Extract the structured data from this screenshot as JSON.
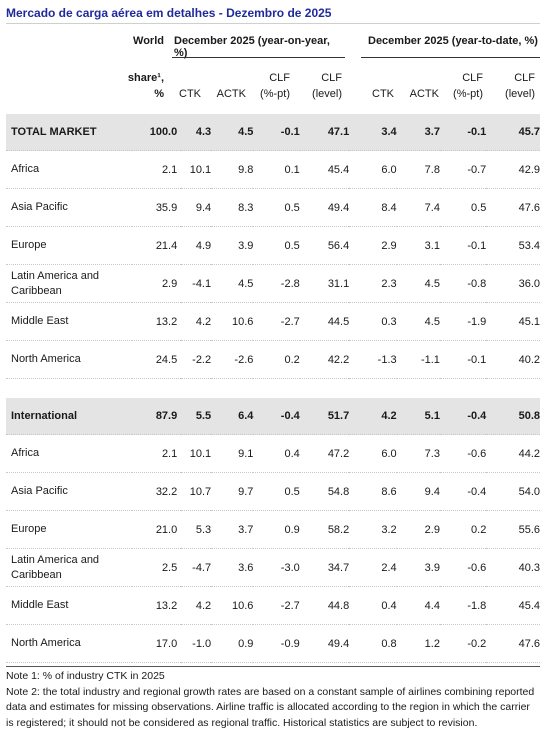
{
  "title": "Mercado de carga aérea em detalhes - Dezembro de 2025",
  "header": {
    "world": "World",
    "share": "share¹,",
    "pct": "%",
    "yoy_group": "December 2025 (year-on-year, %)",
    "ytd_group": "December 2025 (year-to-date, %)",
    "ctk": "CTK",
    "actk": "ACTK",
    "clf_pt_1": "CLF",
    "clf_pt_2": "(%-pt)",
    "clf_lvl_1": "CLF",
    "clf_lvl_2": "(level)"
  },
  "rows": [
    {
      "label": "TOTAL MARKET",
      "share": "100.0",
      "v": [
        "4.3",
        "4.5",
        "-0.1",
        "47.1",
        "3.4",
        "3.7",
        "-0.1",
        "45.7"
      ]
    },
    {
      "label": "Africa",
      "share": "2.1",
      "v": [
        "10.1",
        "9.8",
        "0.1",
        "45.4",
        "6.0",
        "7.8",
        "-0.7",
        "42.9"
      ]
    },
    {
      "label": "Asia Pacific",
      "share": "35.9",
      "v": [
        "9.4",
        "8.3",
        "0.5",
        "49.4",
        "8.4",
        "7.4",
        "0.5",
        "47.6"
      ]
    },
    {
      "label": "Europe",
      "share": "21.4",
      "v": [
        "4.9",
        "3.9",
        "0.5",
        "56.4",
        "2.9",
        "3.1",
        "-0.1",
        "53.4"
      ]
    },
    {
      "label": "Latin America and Caribbean",
      "share": "2.9",
      "v": [
        "-4.1",
        "4.5",
        "-2.8",
        "31.1",
        "2.3",
        "4.5",
        "-0.8",
        "36.0"
      ]
    },
    {
      "label": "Middle East",
      "share": "13.2",
      "v": [
        "4.2",
        "10.6",
        "-2.7",
        "44.5",
        "0.3",
        "4.5",
        "-1.9",
        "45.1"
      ]
    },
    {
      "label": "North America",
      "share": "24.5",
      "v": [
        "-2.2",
        "-2.6",
        "0.2",
        "42.2",
        "-1.3",
        "-1.1",
        "-0.1",
        "40.2"
      ]
    },
    {
      "label": "International",
      "share": "87.9",
      "v": [
        "5.5",
        "6.4",
        "-0.4",
        "51.7",
        "4.2",
        "5.1",
        "-0.4",
        "50.8"
      ]
    },
    {
      "label": "Africa",
      "share": "2.1",
      "v": [
        "10.1",
        "9.1",
        "0.4",
        "47.2",
        "6.0",
        "7.3",
        "-0.6",
        "44.2"
      ]
    },
    {
      "label": "Asia Pacific",
      "share": "32.2",
      "v": [
        "10.7",
        "9.7",
        "0.5",
        "54.8",
        "8.6",
        "9.4",
        "-0.4",
        "54.0"
      ]
    },
    {
      "label": "Europe",
      "share": "21.0",
      "v": [
        "5.3",
        "3.7",
        "0.9",
        "58.2",
        "3.2",
        "2.9",
        "0.2",
        "55.6"
      ]
    },
    {
      "label": "Latin America and Caribbean",
      "share": "2.5",
      "v": [
        "-4.7",
        "3.6",
        "-3.0",
        "34.7",
        "2.4",
        "3.9",
        "-0.6",
        "40.3"
      ]
    },
    {
      "label": "Middle East",
      "share": "13.2",
      "v": [
        "4.2",
        "10.6",
        "-2.7",
        "44.8",
        "0.4",
        "4.4",
        "-1.8",
        "45.4"
      ]
    },
    {
      "label": "North America",
      "share": "17.0",
      "v": [
        "-1.0",
        "0.9",
        "-0.9",
        "49.4",
        "0.8",
        "1.2",
        "-0.2",
        "47.6"
      ]
    }
  ],
  "notes": [
    "Note 1: % of industry CTK in 2025",
    "Note 2: the total industry and regional growth rates are based on a constant sample of airlines combining reported data and estimates for missing observations. Airline traffic is allocated according to the region in which the carrier is registered; it should not be considered as regional traffic. Historical statistics are subject to revision."
  ]
}
